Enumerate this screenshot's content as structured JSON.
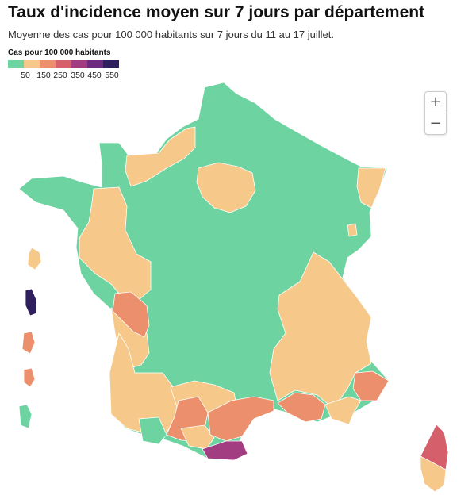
{
  "header": {
    "title": "Taux d'incidence moyen sur 7 jours par département",
    "subtitle": "Moyenne des cas pour 100 000 habitants sur 7 jours du 11 au 17 juillet."
  },
  "legend": {
    "title": "Cas pour 100 000 habitants",
    "colors": [
      "#6dd3a0",
      "#f6c98a",
      "#ec8f6c",
      "#d65f6c",
      "#a33d82",
      "#6e2a80",
      "#2f1f5e"
    ],
    "ticks": [
      "50",
      "150",
      "250",
      "350",
      "450",
      "550"
    ]
  },
  "zoom": {
    "in_label": "+",
    "out_label": "−"
  }
}
